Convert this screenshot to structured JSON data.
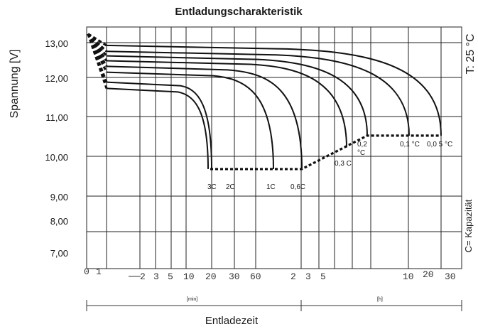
{
  "chart_data": {
    "type": "line",
    "title": "Entladungscharakteristik",
    "ylabel": "Spannung [V]",
    "xlabel": "Entladezeit",
    "ylim": [
      6.3,
      13.3
    ],
    "y_ticks": [
      "13,00",
      "12,00",
      "11,00",
      "10,00",
      "9,00",
      "8,00",
      "7,00"
    ],
    "y_tick_values": [
      13,
      12,
      11,
      10,
      9,
      8,
      7
    ],
    "x_ticks": [
      "0",
      "1",
      "2",
      "3",
      "5",
      "10",
      "20",
      "30",
      "60",
      "2",
      "3",
      "5",
      "10",
      "20",
      "30"
    ],
    "x_unit_min": "[min]",
    "x_unit_h": "[h]",
    "right_top_label": "T: 25 °C",
    "right_bottom_label": "C= Kapazität",
    "grid": true,
    "series": [
      {
        "name": "3C",
        "x_min": [
          0,
          20
        ],
        "y": [
          11.72,
          9.68
        ]
      },
      {
        "name": "2C",
        "x_min": [
          0,
          30
        ],
        "y": [
          11.88,
          9.68
        ]
      },
      {
        "name": "1C",
        "x_min": [
          0,
          63
        ],
        "y": [
          12.15,
          9.68
        ]
      },
      {
        "name": "0,6C",
        "x_min": [
          0,
          108
        ],
        "y": [
          12.32,
          9.68
        ]
      },
      {
        "name": "0,3C",
        "x_min": [
          0,
          270
        ],
        "y": [
          12.48,
          10.22
        ]
      },
      {
        "name": "0,2C",
        "x_min": [
          0,
          375
        ],
        "y": [
          12.62,
          10.52
        ]
      },
      {
        "name": "0,1C",
        "x_min": [
          0,
          600
        ],
        "y": [
          12.75,
          10.52
        ]
      },
      {
        "name": "0,05C",
        "x_min": [
          0,
          1500
        ],
        "y": [
          12.92,
          10.52
        ]
      }
    ],
    "curve_labels": {
      "c3": "3C",
      "c2": "2C",
      "c1": "1C",
      "c06": "0,6C",
      "c03": "0,3 C",
      "c02a": "0,2",
      "c02b": "°C",
      "c01": "0,1 °C",
      "c005": "0,0 5 °C"
    },
    "end_voltage_line": "dotted"
  }
}
